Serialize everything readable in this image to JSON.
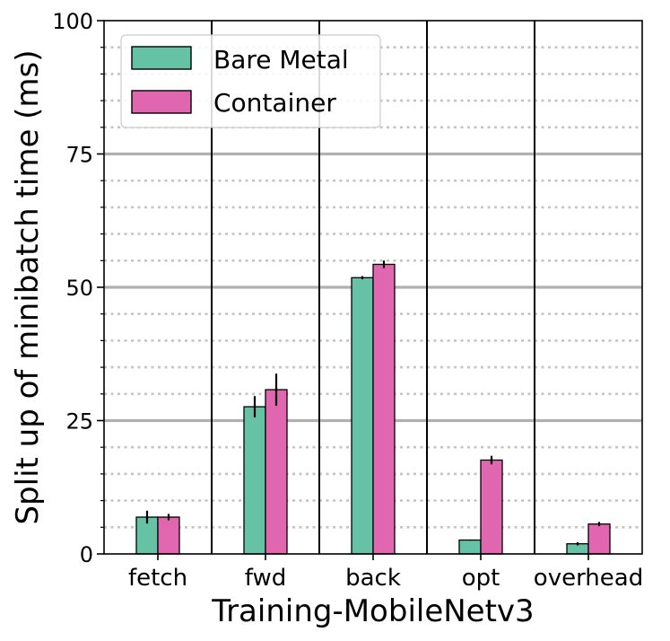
{
  "chart_data": {
    "type": "bar",
    "title": "",
    "xlabel": "Training-MobileNetv3",
    "ylabel": "Split up of minibatch time (ms)",
    "ylim": [
      0,
      100
    ],
    "yticks": [
      0,
      25,
      50,
      75,
      100
    ],
    "categories": [
      "fetch",
      "fwd",
      "back",
      "opt",
      "overhead"
    ],
    "series": [
      {
        "name": "Bare Metal",
        "color": "#66c2a5",
        "values": [
          6.9,
          27.6,
          51.8,
          2.6,
          1.9
        ],
        "errors": [
          1.2,
          2.0,
          0.3,
          0.1,
          0.3
        ]
      },
      {
        "name": "Container",
        "color": "#e066b0",
        "values": [
          6.9,
          30.8,
          54.3,
          17.6,
          5.6
        ],
        "errors": [
          0.6,
          3.0,
          0.7,
          0.8,
          0.4
        ]
      }
    ],
    "grid": {
      "major_y": true,
      "minor_y": true,
      "major_style": "solid",
      "minor_style": "dotted"
    },
    "legend": {
      "placement": "top-left"
    },
    "error_bars": true
  }
}
